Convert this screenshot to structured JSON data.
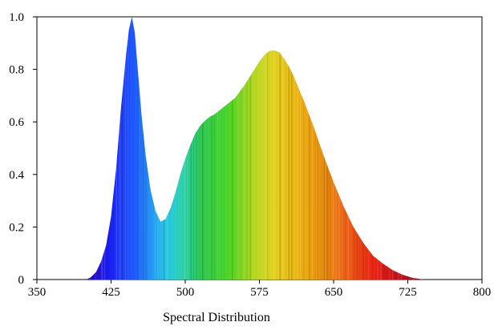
{
  "chart_data": {
    "type": "area",
    "title": "",
    "xlabel": "Spectral Distribution",
    "ylabel": "",
    "xlim": [
      350,
      800
    ],
    "ylim": [
      0,
      1.0
    ],
    "x_ticks": [
      "350",
      "425",
      "500",
      "575",
      "650",
      "725",
      "800"
    ],
    "y_ticks": [
      "0",
      "0.2",
      "0.4",
      "0.6",
      "0.8",
      "1.0"
    ],
    "grid": false,
    "fill": "visible-spectrum gradient",
    "series": [
      {
        "x": [
          350,
          400,
          405,
          410,
          415,
          420,
          425,
          430,
          435,
          440,
          443,
          446,
          449,
          452,
          456,
          460,
          465,
          470,
          475,
          480,
          485,
          490,
          495,
          500,
          505,
          510,
          515,
          520,
          525,
          530,
          540,
          550,
          560,
          570,
          575,
          580,
          585,
          590,
          595,
          600,
          605,
          610,
          620,
          630,
          640,
          650,
          660,
          670,
          680,
          690,
          700,
          710,
          720,
          730,
          740,
          745,
          800
        ],
        "y": [
          0,
          0,
          0.01,
          0.03,
          0.07,
          0.13,
          0.24,
          0.42,
          0.65,
          0.85,
          0.95,
          1.0,
          0.94,
          0.8,
          0.62,
          0.47,
          0.34,
          0.26,
          0.22,
          0.23,
          0.27,
          0.33,
          0.4,
          0.46,
          0.51,
          0.555,
          0.585,
          0.605,
          0.62,
          0.63,
          0.66,
          0.69,
          0.74,
          0.8,
          0.83,
          0.855,
          0.87,
          0.873,
          0.865,
          0.84,
          0.81,
          0.77,
          0.68,
          0.58,
          0.47,
          0.37,
          0.28,
          0.2,
          0.14,
          0.09,
          0.06,
          0.035,
          0.018,
          0.006,
          0.001,
          0,
          0
        ]
      }
    ]
  }
}
